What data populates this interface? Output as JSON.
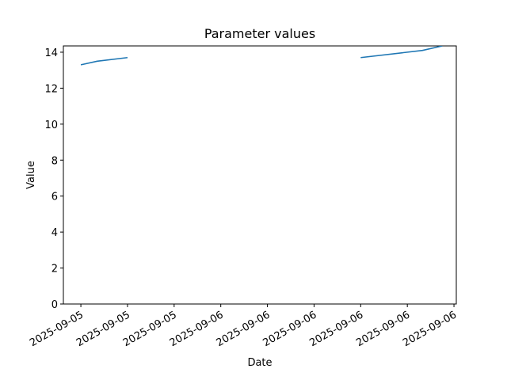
{
  "chart_data": {
    "type": "line",
    "title": "Parameter values",
    "x_label": "Date",
    "y_label": "Value",
    "x": [
      0,
      1.4,
      4,
      12,
      24,
      29.3,
      31
    ],
    "series": [
      {
        "color": "#1f77b4",
        "values": [
          13.3,
          13.5,
          13.7,
          null,
          13.7,
          14.1,
          14.35
        ]
      }
    ],
    "xlim": [
      -1.5,
      32.2
    ],
    "xticks": [
      {
        "value": 0,
        "label": "2025-09-05"
      },
      {
        "value": 4,
        "label": "2025-09-05"
      },
      {
        "value": 8,
        "label": "2025-09-05"
      },
      {
        "value": 12,
        "label": "2025-09-06"
      },
      {
        "value": 16,
        "label": "2025-09-06"
      },
      {
        "value": 20,
        "label": "2025-09-06"
      },
      {
        "value": 24,
        "label": "2025-09-06"
      },
      {
        "value": 28,
        "label": "2025-09-06"
      },
      {
        "value": 32,
        "label": "2025-09-06"
      }
    ],
    "ylim": [
      0,
      14.35
    ],
    "yticks": [
      0,
      2,
      4,
      6,
      8,
      10,
      12,
      14
    ],
    "grid": false
  }
}
